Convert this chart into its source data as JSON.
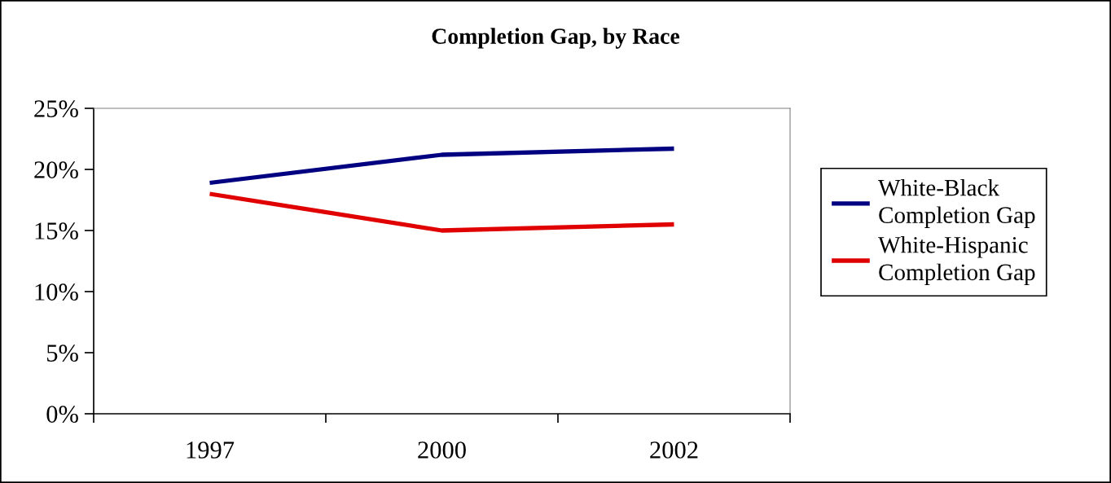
{
  "chart_data": {
    "type": "line",
    "title": "Completion Gap, by Race",
    "categories": [
      "1997",
      "2000",
      "2002"
    ],
    "series": [
      {
        "name": "White-Black Completion Gap",
        "color": "#000080",
        "values": [
          18.9,
          21.2,
          21.7
        ]
      },
      {
        "name": "White-Hispanic Completion Gap",
        "color": "#e00000",
        "values": [
          18.0,
          15.0,
          15.5
        ]
      }
    ],
    "ylim": [
      0,
      25
    ],
    "yticks": [
      {
        "value": 0,
        "label": "0%"
      },
      {
        "value": 5,
        "label": "5%"
      },
      {
        "value": 10,
        "label": "10%"
      },
      {
        "value": 15,
        "label": "15%"
      },
      {
        "value": 20,
        "label": "20%"
      },
      {
        "value": 25,
        "label": "25%"
      }
    ],
    "grid": false,
    "legend": "right",
    "marker": "none",
    "line_style": "solid"
  }
}
